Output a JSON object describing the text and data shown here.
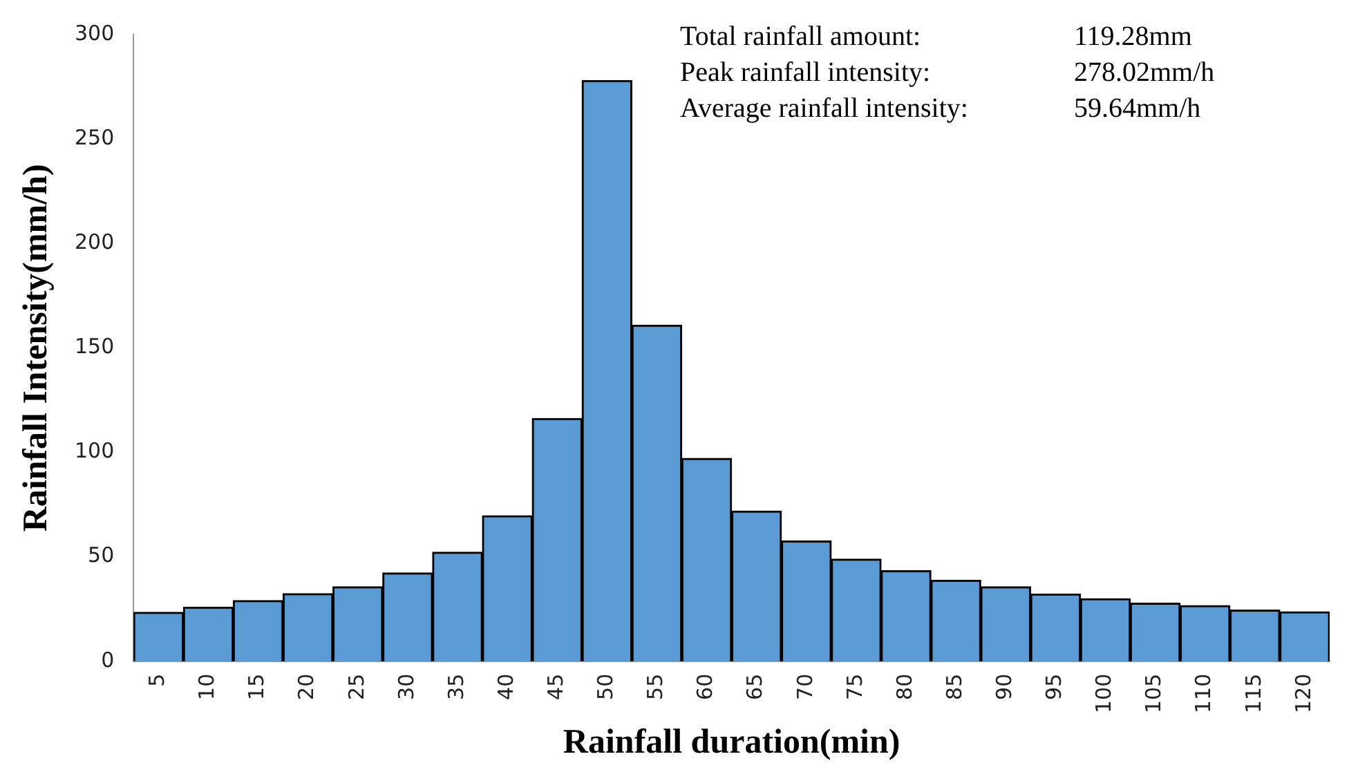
{
  "chart_data": {
    "type": "bar",
    "xlabel": "Rainfall duration(min)",
    "ylabel": "Rainfall Intensity(mm/h)",
    "categories": [
      "5",
      "10",
      "15",
      "20",
      "25",
      "30",
      "35",
      "40",
      "45",
      "50",
      "55",
      "60",
      "65",
      "70",
      "75",
      "80",
      "85",
      "90",
      "95",
      "100",
      "105",
      "110",
      "115",
      "120"
    ],
    "values": [
      23.4,
      25.9,
      29.1,
      32.4,
      35.7,
      42.3,
      52.2,
      69.7,
      116.2,
      278,
      160.9,
      97.1,
      71.9,
      57.6,
      48.9,
      43.4,
      38.8,
      35.7,
      32.2,
      30,
      27.8,
      26.7,
      24.5,
      23.7
    ],
    "color": "#5b9bd5",
    "ylim": [
      0,
      300
    ],
    "yticks": [
      0,
      50,
      100,
      150,
      200,
      250,
      300
    ],
    "grid": false,
    "legend": false,
    "annotations": [
      "Total rainfall amount: 119.28mm",
      "Peak rainfall intensity: 278.02mm/h",
      "Average rainfall intensity: 59.64mm/h"
    ]
  }
}
